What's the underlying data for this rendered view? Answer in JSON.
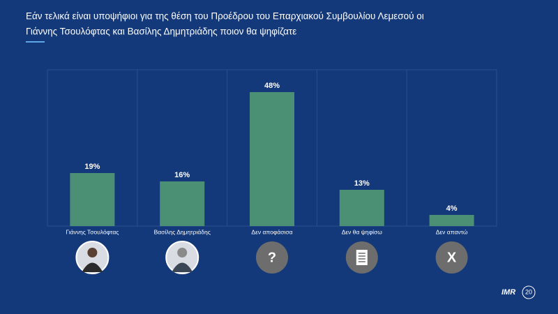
{
  "chart_data": {
    "type": "bar",
    "title": [
      "Εάν τελικά είναι υποψήφιοι για της θέση του Προέδρου του Επαρχιακού Συμβουλίου Λεμεσού οι",
      "Γιάννης Τσουλόφτας και Βασίλης Δημητριάδης ποιον θα ψηφίζατε"
    ],
    "categories": [
      "Γιάννης Τσουλόφτας",
      "Βασίλης Δημητριάδης",
      "Δεν αποφάσισα",
      "Δεν θα ψηφίσω",
      "Δεν απαντώ"
    ],
    "values": [
      19,
      16,
      48,
      13,
      4
    ],
    "value_labels": [
      "19%",
      "16%",
      "48%",
      "13%",
      "4%"
    ],
    "icon_texts": [
      null,
      null,
      "?",
      null,
      "X"
    ],
    "color": "#4b8f74",
    "ylim": [
      0,
      56
    ]
  },
  "logo": {
    "text": "IMR",
    "badge": "20"
  }
}
